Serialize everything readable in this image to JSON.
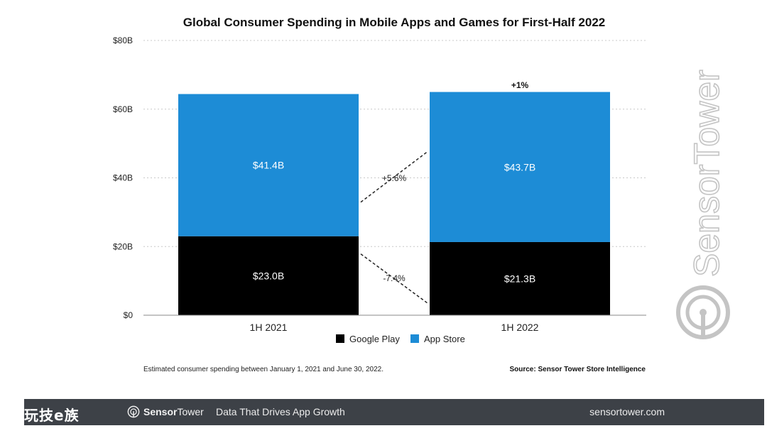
{
  "chart_data": {
    "type": "bar",
    "stacked": true,
    "title": "Global Consumer Spending in Mobile Apps and Games for First-Half 2022",
    "categories": [
      "1H 2021",
      "1H 2022"
    ],
    "series": [
      {
        "name": "Google Play",
        "values": [
          23.0,
          21.3
        ],
        "labels": [
          "$23.0B",
          "$21.3B"
        ],
        "color": "#000000"
      },
      {
        "name": "App Store",
        "values": [
          41.4,
          43.7
        ],
        "labels": [
          "$41.4B",
          "$43.7B"
        ],
        "color": "#1d8cd6"
      }
    ],
    "ylim": [
      0,
      80
    ],
    "yticks": [
      0,
      20,
      40,
      60,
      80
    ],
    "ytick_labels": [
      "$0",
      "$20B",
      "$40B",
      "$60B",
      "$80B"
    ],
    "xlabel": "",
    "ylabel": "",
    "grid": true,
    "legend": "bottom-center",
    "annotations": {
      "total_change": "+1%",
      "app_store_change": "+5.6%",
      "google_play_change": "-7.4%"
    },
    "footnote": "Estimated consumer spending between January 1, 2021 and June 30, 2022.",
    "source": "Source: Sensor Tower Store Intelligence"
  },
  "watermark": {
    "text": "SensorTower",
    "icon": "sensor-tower-logo-icon"
  },
  "footer": {
    "cn_logo": "玩技e族",
    "brand_bold": "Sensor",
    "brand_regular": "Tower",
    "tagline": "Data That Drives App Growth",
    "site": "sensortower.com",
    "background": "#3d4147"
  }
}
